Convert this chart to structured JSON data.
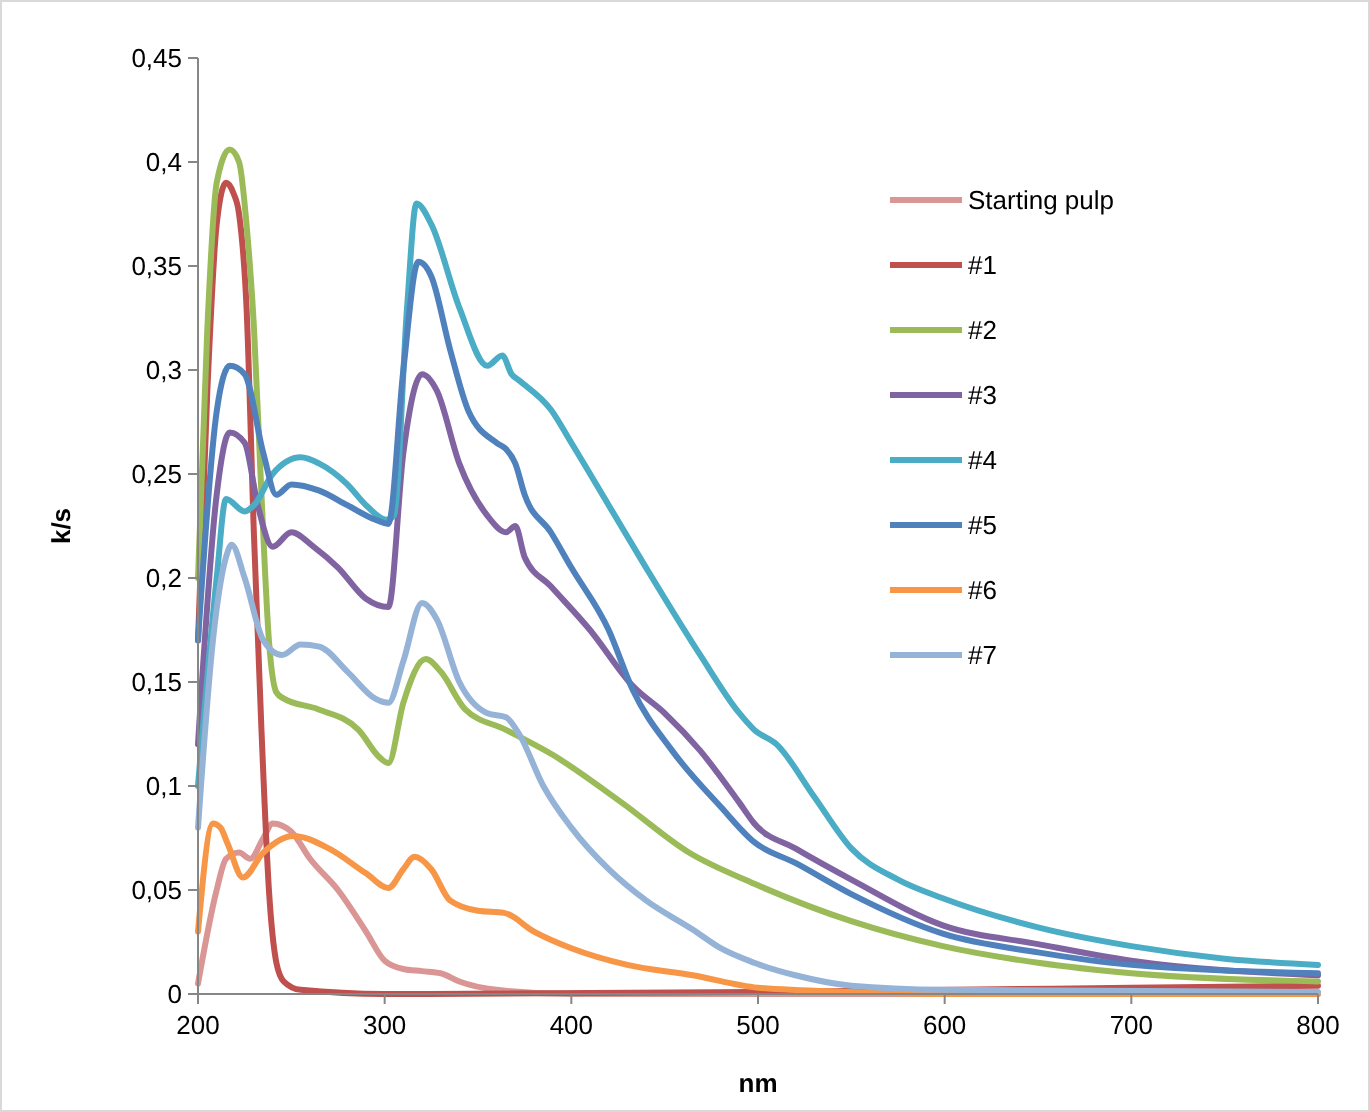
{
  "chart_data": {
    "type": "line",
    "xlabel": "nm",
    "ylabel": "k/s",
    "legend": "top right",
    "grid": false,
    "marker": "none",
    "line_style": "solid",
    "xlim": [
      200,
      800
    ],
    "xticks": [
      200,
      300,
      400,
      500,
      600,
      700,
      800
    ],
    "ylim": [
      0,
      0.45
    ],
    "yticks": [
      {
        "value": 0,
        "label": "0"
      },
      {
        "value": 0.05,
        "label": "0,05"
      },
      {
        "value": 0.1,
        "label": "0,1"
      },
      {
        "value": 0.15,
        "label": "0,15"
      },
      {
        "value": 0.2,
        "label": "0,2"
      },
      {
        "value": 0.25,
        "label": "0,25"
      },
      {
        "value": 0.3,
        "label": "0,3"
      },
      {
        "value": 0.35,
        "label": "0,35"
      },
      {
        "value": 0.4,
        "label": "0,4"
      },
      {
        "value": 0.45,
        "label": "0,45"
      }
    ],
    "series": [
      {
        "name": "Starting pulp",
        "color": "#d99694",
        "x": [
          200,
          210,
          215,
          222,
          228,
          235,
          240,
          250,
          260,
          275,
          290,
          300,
          310,
          320,
          330,
          340,
          360,
          400,
          500,
          600,
          800
        ],
        "values": [
          0.005,
          0.05,
          0.065,
          0.068,
          0.065,
          0.075,
          0.082,
          0.078,
          0.065,
          0.05,
          0.03,
          0.016,
          0.012,
          0.011,
          0.01,
          0.006,
          0.002,
          0,
          0,
          0,
          0
        ]
      },
      {
        "name": "#1",
        "color": "#c0504d",
        "x": [
          200,
          205,
          210,
          215,
          219,
          222,
          226,
          230,
          234,
          238,
          242,
          246,
          255,
          300,
          500,
          700,
          800
        ],
        "values": [
          0.17,
          0.29,
          0.37,
          0.39,
          0.385,
          0.375,
          0.33,
          0.22,
          0.127,
          0.05,
          0.015,
          0.006,
          0.002,
          0,
          0.001,
          0.003,
          0.004
        ]
      },
      {
        "name": "#2",
        "color": "#9bbb59",
        "x": [
          200,
          205,
          210,
          217,
          222,
          226,
          230,
          234,
          238,
          242,
          246,
          264,
          286,
          297,
          302,
          310,
          322,
          330,
          343,
          365,
          390,
          427,
          463,
          498,
          550,
          599,
          650,
          700,
          800
        ],
        "values": [
          0.2,
          0.32,
          0.39,
          0.406,
          0.4,
          0.37,
          0.32,
          0.24,
          0.17,
          0.145,
          0.142,
          0.137,
          0.127,
          0.114,
          0.111,
          0.14,
          0.161,
          0.155,
          0.137,
          0.127,
          0.115,
          0.092,
          0.068,
          0.053,
          0.035,
          0.023,
          0.015,
          0.01,
          0.006
        ]
      },
      {
        "name": "#3",
        "color": "#8064a2",
        "x": [
          200,
          210,
          217,
          225,
          232,
          240,
          250,
          262,
          275,
          290,
          302,
          310,
          320,
          328,
          340,
          355,
          365,
          370,
          375,
          389,
          410,
          433,
          450,
          469,
          490,
          498,
          520,
          550,
          599,
          650,
          700,
          800
        ],
        "values": [
          0.12,
          0.24,
          0.27,
          0.265,
          0.235,
          0.215,
          0.222,
          0.215,
          0.205,
          0.19,
          0.186,
          0.26,
          0.298,
          0.29,
          0.255,
          0.23,
          0.222,
          0.225,
          0.21,
          0.196,
          0.175,
          0.148,
          0.135,
          0.117,
          0.092,
          0.082,
          0.07,
          0.055,
          0.033,
          0.024,
          0.016,
          0.009
        ]
      },
      {
        "name": "#4",
        "color": "#4bacc6",
        "x": [
          200,
          210,
          215,
          225,
          230,
          240,
          255,
          265,
          280,
          290,
          301,
          305,
          312,
          317,
          325,
          340,
          355,
          363,
          368,
          372,
          389,
          400,
          420,
          440,
          469,
          490,
          498,
          510,
          530,
          550,
          575,
          599,
          650,
          700,
          750,
          800
        ],
        "values": [
          0.1,
          0.2,
          0.238,
          0.232,
          0.235,
          0.25,
          0.258,
          0.255,
          0.245,
          0.235,
          0.228,
          0.23,
          0.33,
          0.38,
          0.37,
          0.33,
          0.302,
          0.307,
          0.298,
          0.295,
          0.281,
          0.265,
          0.235,
          0.205,
          0.163,
          0.135,
          0.127,
          0.12,
          0.095,
          0.07,
          0.055,
          0.046,
          0.032,
          0.023,
          0.017,
          0.014
        ]
      },
      {
        "name": "#5",
        "color": "#4f81bd",
        "x": [
          200,
          210,
          217,
          225,
          235,
          242,
          250,
          265,
          280,
          295,
          302,
          310,
          318,
          325,
          335,
          345,
          360,
          365,
          370,
          375,
          389,
          400,
          420,
          433,
          454,
          480,
          498,
          520,
          550,
          599,
          650,
          700,
          800
        ],
        "values": [
          0.17,
          0.28,
          0.302,
          0.298,
          0.26,
          0.24,
          0.245,
          0.242,
          0.235,
          0.228,
          0.226,
          0.3,
          0.352,
          0.345,
          0.31,
          0.28,
          0.265,
          0.262,
          0.255,
          0.24,
          0.222,
          0.205,
          0.175,
          0.146,
          0.117,
          0.09,
          0.073,
          0.063,
          0.048,
          0.029,
          0.02,
          0.014,
          0.01
        ]
      },
      {
        "name": "#6",
        "color": "#f79646",
        "x": [
          200,
          208,
          212,
          216,
          224,
          235,
          251,
          270,
          290,
          302,
          310,
          316,
          325,
          335,
          350,
          364,
          380,
          400,
          430,
          465,
          500,
          550,
          600,
          800
        ],
        "values": [
          0.03,
          0.082,
          0.08,
          0.072,
          0.056,
          0.068,
          0.076,
          0.07,
          0.058,
          0.051,
          0.06,
          0.066,
          0.06,
          0.045,
          0.04,
          0.039,
          0.03,
          0.022,
          0.014,
          0.009,
          0.003,
          0.001,
          0,
          0
        ]
      },
      {
        "name": "#7",
        "color": "#95b3d7",
        "x": [
          200,
          208,
          215,
          218,
          225,
          235,
          245,
          255,
          265,
          280,
          295,
          302,
          310,
          320,
          328,
          340,
          355,
          365,
          372,
          385,
          400,
          420,
          440,
          465,
          480,
          498,
          520,
          550,
          600,
          800
        ],
        "values": [
          0.08,
          0.17,
          0.21,
          0.216,
          0.2,
          0.17,
          0.163,
          0.168,
          0.167,
          0.155,
          0.142,
          0.14,
          0.16,
          0.188,
          0.18,
          0.15,
          0.135,
          0.133,
          0.125,
          0.1,
          0.08,
          0.06,
          0.045,
          0.031,
          0.022,
          0.015,
          0.009,
          0.004,
          0.002,
          0.001
        ]
      }
    ]
  }
}
